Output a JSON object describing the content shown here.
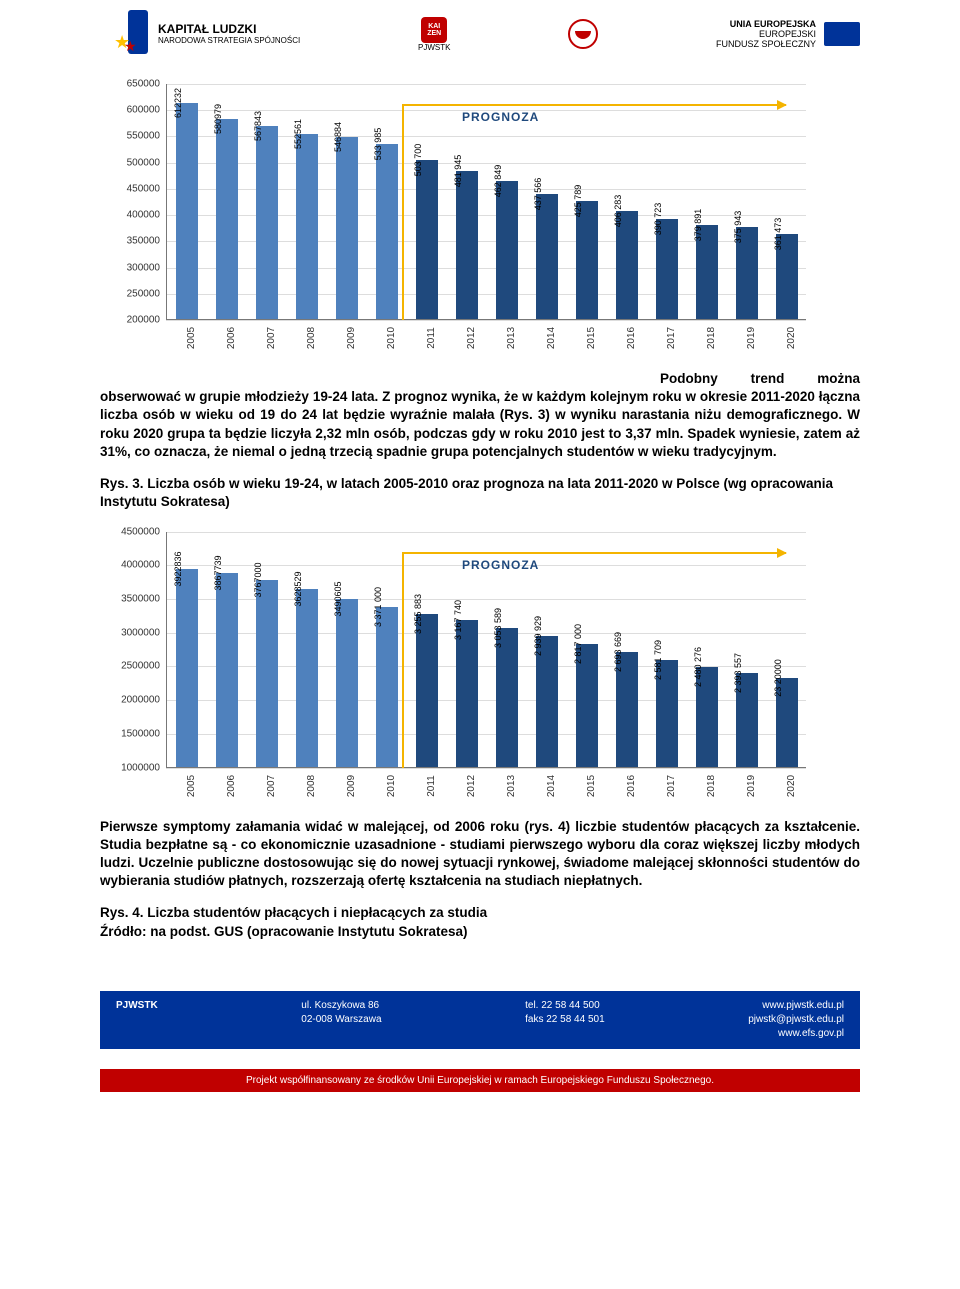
{
  "header": {
    "kapital": "KAPITAŁ LUDZKI",
    "kapital_sub": "NARODOWA STRATEGIA SPÓJNOŚCI",
    "kaizen": "KAI ZEN",
    "pjwstk": "PJWSTK",
    "eu1": "UNIA EUROPEJSKA",
    "eu2": "EUROPEJSKI",
    "eu3": "FUNDUSZ SPOŁECZNY"
  },
  "chart1": {
    "type": "bar",
    "categories": [
      "2005",
      "2006",
      "2007",
      "2008",
      "2009",
      "2010",
      "2011",
      "2012",
      "2013",
      "2014",
      "2015",
      "2016",
      "2017",
      "2018",
      "2019",
      "2020"
    ],
    "values": [
      612232,
      580979,
      567843,
      552561,
      546884,
      533985,
      503700,
      481945,
      462849,
      437566,
      425789,
      406283,
      390723,
      379891,
      375943,
      361473
    ],
    "value_labels": [
      "612232",
      "580979",
      "567843",
      "552561",
      "546884",
      "533 985",
      "503 700",
      "481 945",
      "462 849",
      "437 566",
      "425 789",
      "406 283",
      "390 723",
      "379 891",
      "375 943",
      "361 473"
    ],
    "ylim": [
      200000,
      650000
    ],
    "ytick_step": 50000,
    "forecast_start_index": 6,
    "forecast_label": "PROGNOZA",
    "bar_color_hist": "#4f81bd",
    "bar_color_fcst": "#1f497d",
    "background_color": "#ffffff",
    "grid_color": "#dddddd"
  },
  "para1": "Podobny trend można obserwować w grupie młodzieży 19-24 lata. Z prognoz wynika, że w każdym kolejnym roku w okresie 2011-2020 łączna liczba osób w wieku od 19 do 24 lat będzie wyraźnie malała (Rys. 3) w wyniku narastania niżu demograficznego. W roku 2020 grupa ta będzie liczyła 2,32 mln osób, podczas gdy w roku 2010 jest to 3,37 mln. Spadek wyniesie, zatem aż 31%, co oznacza, że niemal o jedną trzecią spadnie grupa potencjalnych studentów w wieku tradycyjnym.",
  "caption1": "Rys. 3. Liczba osób w wieku 19-24, w latach 2005-2010 oraz prognoza na lata 2011-2020 w Polsce (wg opracowania Instytutu Sokratesa)",
  "chart2": {
    "type": "bar",
    "categories": [
      "2005",
      "2006",
      "2007",
      "2008",
      "2009",
      "2010",
      "2011",
      "2012",
      "2013",
      "2014",
      "2015",
      "2016",
      "2017",
      "2018",
      "2019",
      "2020"
    ],
    "values": [
      3922836,
      3867739,
      3767000,
      3628529,
      3490605,
      3371000,
      3255883,
      3167740,
      3053589,
      2939929,
      2817000,
      2693669,
      2581709,
      2480276,
      2393557,
      2320000
    ],
    "value_labels": [
      "3922836",
      "3867739",
      "3767000",
      "3628529",
      "3490605",
      "3 371 000",
      "3 255 883",
      "3 167 740",
      "3 053 589",
      "2 939 929",
      "2 817 000",
      "2 693 669",
      "2 581 709",
      "2 480 276",
      "2 393 557",
      "23 20000"
    ],
    "ylim": [
      1000000,
      4500000
    ],
    "ytick_step": 500000,
    "forecast_start_index": 6,
    "forecast_label": "PROGNOZA",
    "bar_color_hist": "#4f81bd",
    "bar_color_fcst": "#1f497d",
    "background_color": "#ffffff",
    "grid_color": "#dddddd"
  },
  "para2": "Pierwsze symptomy załamania widać w malejącej, od 2006 roku (rys. 4) liczbie studentów płacących za kształcenie. Studia bezpłatne są - co ekonomicznie uzasadnione - studiami pierwszego wyboru dla coraz większej liczby młodych ludzi. Uczelnie publiczne dostosowując się do nowej sytuacji rynkowej, świadome malejącej skłonności studentów do wybierania studiów płatnych, rozszerzają ofertę kształcenia na studiach niepłatnych.",
  "caption2_l1": "Rys. 4. Liczba studentów płacących i niepłacących za studia",
  "caption2_l2": "Źródło: na podst. GUS (opracowanie Instytutu Sokratesa)",
  "footer": {
    "org": "PJWSTK",
    "addr1": "ul. Koszykowa 86",
    "addr2": "02-008 Warszawa",
    "tel": "tel. 22 58 44 500",
    "fax": "faks 22 58 44 501",
    "w1": "www.pjwstk.edu.pl",
    "w2": "pjwstk@pjwstk.edu.pl",
    "w3": "www.efs.gov.pl",
    "bottom": "Projekt współfinansowany ze środków Unii Europejskiej w ramach Europejskiego Funduszu Społecznego."
  }
}
